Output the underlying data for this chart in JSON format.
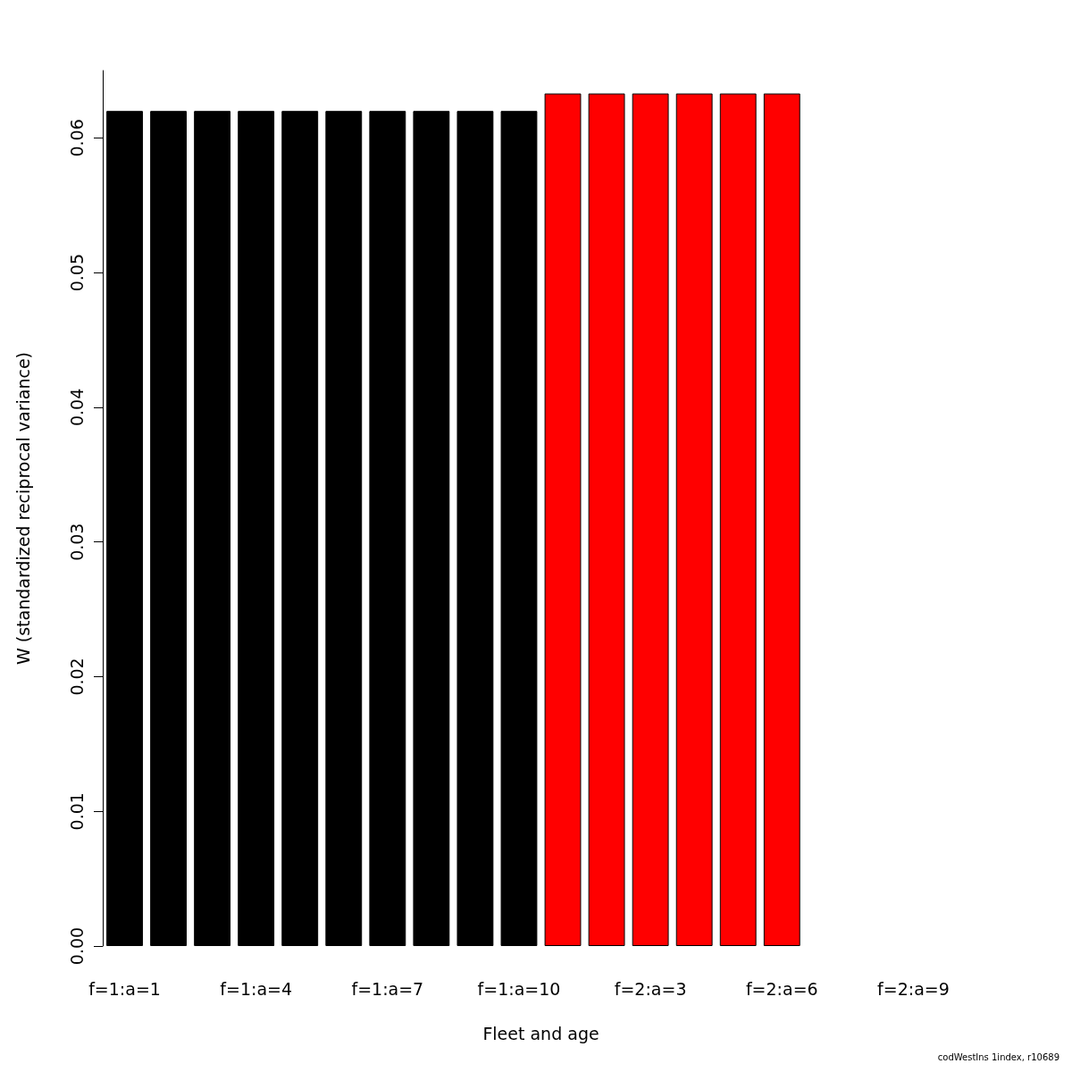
{
  "chart_data": {
    "type": "bar",
    "xlabel": "Fleet and age",
    "ylabel": "W (standardized reciprocal variance)",
    "categories": [
      "f=1:a=1",
      null,
      null,
      "f=1:a=4",
      null,
      null,
      "f=1:a=7",
      null,
      null,
      "f=1:a=10",
      null,
      null,
      "f=2:a=3",
      null,
      null,
      "f=2:a=6",
      null,
      null,
      "f=2:a=9",
      null
    ],
    "values": [
      0.062,
      0.062,
      0.062,
      0.062,
      0.062,
      0.062,
      0.062,
      0.062,
      0.062,
      0.062,
      0.0633,
      0.0633,
      0.0633,
      0.0633,
      0.0633,
      0.0633,
      null,
      null,
      null,
      null
    ],
    "colors": [
      "#000000",
      "#000000",
      "#000000",
      "#000000",
      "#000000",
      "#000000",
      "#000000",
      "#000000",
      "#000000",
      "#000000",
      "#ff0000",
      "#ff0000",
      "#ff0000",
      "#ff0000",
      "#ff0000",
      "#ff0000",
      null,
      null,
      null,
      null
    ],
    "ylim": [
      0,
      0.065
    ],
    "yticks": [
      {
        "value": 0,
        "label": "0.00"
      },
      {
        "value": 0.01,
        "label": "0.01"
      },
      {
        "value": 0.02,
        "label": "0.02"
      },
      {
        "value": 0.03,
        "label": "0.03"
      },
      {
        "value": 0.04,
        "label": "0.04"
      },
      {
        "value": 0.05,
        "label": "0.05"
      },
      {
        "value": 0.06,
        "label": "0.06"
      }
    ],
    "grid": false,
    "annotations": [
      "codWestIns 1index, r10689"
    ]
  }
}
